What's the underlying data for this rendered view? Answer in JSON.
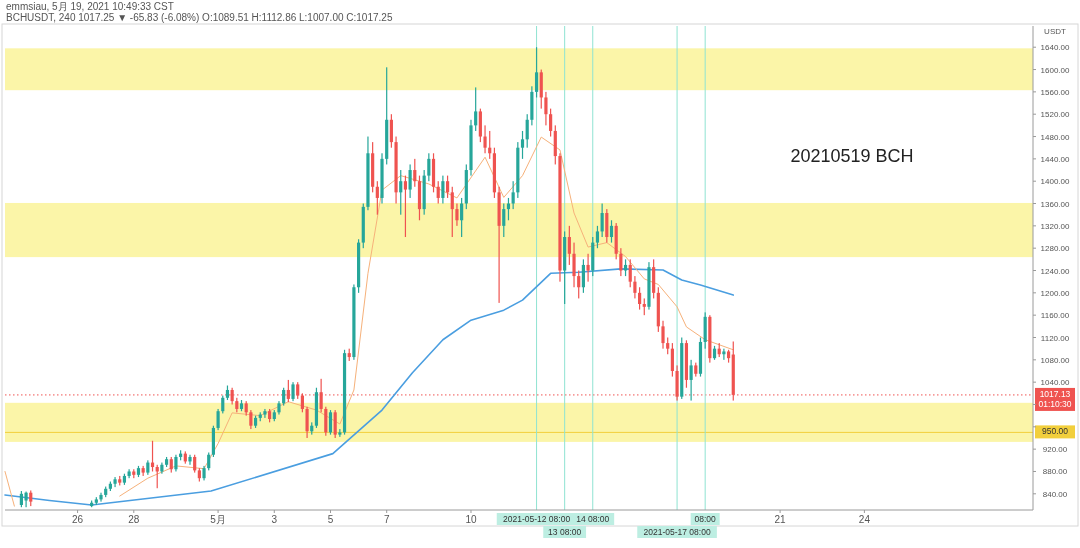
{
  "chart_data": {
    "type": "candlestick",
    "title": "20210519 BCH",
    "ylabel": "USDT",
    "annotations": [
      "emmsiau, 5月 19, 2021 10:49:33 CST",
      "BCHUSDT, 240 1017.25 ▼ -65.83 (-6.08%) O:1089.51 H:1112.86 L:1007.00 C:1017.25"
    ],
    "xlim": [
      "2021-04-23T10:00",
      "2021-05-30T00:00"
    ],
    "ylim": [
      811,
      1678
    ],
    "xticks": [
      {
        "value": "2021-04-26",
        "label": "26"
      },
      {
        "value": "2021-04-28",
        "label": "28"
      },
      {
        "value": "2021-05-01",
        "label": "5月"
      },
      {
        "value": "2021-05-03",
        "label": "3"
      },
      {
        "value": "2021-05-05",
        "label": "5"
      },
      {
        "value": "2021-05-07",
        "label": "7"
      },
      {
        "value": "2021-05-10",
        "label": "10"
      },
      {
        "value": "2021-05-21",
        "label": "21"
      },
      {
        "value": "2021-05-24",
        "label": "24"
      }
    ],
    "yticks": [
      {
        "value": 840,
        "label": "840.00"
      },
      {
        "value": 880,
        "label": "880.00"
      },
      {
        "value": 920,
        "label": "920.00"
      },
      {
        "value": 960,
        "label": null
      },
      {
        "value": 1000,
        "label": null
      },
      {
        "value": 1040,
        "label": "1040.00"
      },
      {
        "value": 1080,
        "label": "1080.00"
      },
      {
        "value": 1120,
        "label": "1120.00"
      },
      {
        "value": 1160,
        "label": "1160.00"
      },
      {
        "value": 1200,
        "label": "1200.00"
      },
      {
        "value": 1240,
        "label": "1240.00"
      },
      {
        "value": 1280,
        "label": "1280.00"
      },
      {
        "value": 1320,
        "label": "1320.00"
      },
      {
        "value": 1360,
        "label": "1360.00"
      },
      {
        "value": 1400,
        "label": "1400.00"
      },
      {
        "value": 1440,
        "label": "1440.00"
      },
      {
        "value": 1480,
        "label": "1480.00"
      },
      {
        "value": 1520,
        "label": "1520.00"
      },
      {
        "value": 1560,
        "label": "1560.00"
      },
      {
        "value": 1600,
        "label": "1600.00"
      },
      {
        "value": 1640,
        "label": "1640.00"
      }
    ],
    "bands": [
      {
        "axis": "y",
        "from": 1563,
        "to": 1638,
        "color": "#fbf5a8"
      },
      {
        "axis": "y",
        "from": 1264,
        "to": 1361,
        "color": "#fbf5a8"
      },
      {
        "axis": "y",
        "from": 933,
        "to": 1003,
        "color": "#fbf5a8"
      }
    ],
    "ref_lines": [
      {
        "axis": "y",
        "value": 950,
        "label": "950.00",
        "color": "#f2cf3c",
        "line_style": "solid"
      },
      {
        "axis": "y",
        "value": 1017.13,
        "label": "1017.13 01:10:30",
        "color": "#ef5350",
        "line_style": "dotted"
      },
      {
        "axis": "x",
        "value": "2021-05-12T08:00",
        "label": "2021-05-12 08:00",
        "color": "#8fe3d2"
      },
      {
        "axis": "x",
        "value": "2021-05-13T08:00",
        "label": "13 08:00",
        "color": "#8fe3d2"
      },
      {
        "axis": "x",
        "value": "2021-05-14T08:00",
        "label": "14 08:00",
        "color": "#8fe3d2"
      },
      {
        "axis": "x",
        "value": "2021-05-17T08:00",
        "label": "2021-05-17 08:00",
        "color": "#8fe3d2"
      },
      {
        "axis": "x",
        "value": "2021-05-18T08:00",
        "label": "08:00",
        "color": "#8fe3d2"
      }
    ],
    "x": [
      "2021-04-24T00:00",
      "2021-04-24T04:00",
      "2021-04-24T08:00",
      "2021-04-26T12:00",
      "2021-04-26T16:00",
      "2021-04-26T20:00",
      "2021-04-27T00:00",
      "2021-04-27T04:00",
      "2021-04-27T08:00",
      "2021-04-27T12:00",
      "2021-04-27T16:00",
      "2021-04-27T20:00",
      "2021-04-28T00:00",
      "2021-04-28T04:00",
      "2021-04-28T08:00",
      "2021-04-28T12:00",
      "2021-04-28T16:00",
      "2021-04-28T20:00",
      "2021-04-29T00:00",
      "2021-04-29T04:00",
      "2021-04-29T08:00",
      "2021-04-29T12:00",
      "2021-04-29T16:00",
      "2021-04-29T20:00",
      "2021-04-30T00:00",
      "2021-04-30T04:00",
      "2021-04-30T08:00",
      "2021-04-30T12:00",
      "2021-04-30T16:00",
      "2021-04-30T20:00",
      "2021-05-01T00:00",
      "2021-05-01T04:00",
      "2021-05-01T08:00",
      "2021-05-01T12:00",
      "2021-05-01T16:00",
      "2021-05-01T20:00",
      "2021-05-02T00:00",
      "2021-05-02T04:00",
      "2021-05-02T08:00",
      "2021-05-02T12:00",
      "2021-05-02T16:00",
      "2021-05-02T20:00",
      "2021-05-03T00:00",
      "2021-05-03T04:00",
      "2021-05-03T08:00",
      "2021-05-03T12:00",
      "2021-05-03T16:00",
      "2021-05-03T20:00",
      "2021-05-04T00:00",
      "2021-05-04T04:00",
      "2021-05-04T08:00",
      "2021-05-04T12:00",
      "2021-05-04T16:00",
      "2021-05-04T20:00",
      "2021-05-05T00:00",
      "2021-05-05T04:00",
      "2021-05-05T08:00",
      "2021-05-05T12:00",
      "2021-05-05T16:00",
      "2021-05-05T20:00",
      "2021-05-06T00:00",
      "2021-05-06T04:00",
      "2021-05-06T08:00",
      "2021-05-06T12:00",
      "2021-05-06T16:00",
      "2021-05-06T20:00",
      "2021-05-07T00:00",
      "2021-05-07T04:00",
      "2021-05-07T08:00",
      "2021-05-07T12:00",
      "2021-05-07T16:00",
      "2021-05-07T20:00",
      "2021-05-08T00:00",
      "2021-05-08T04:00",
      "2021-05-08T08:00",
      "2021-05-08T12:00",
      "2021-05-08T16:00",
      "2021-05-08T20:00",
      "2021-05-09T00:00",
      "2021-05-09T04:00",
      "2021-05-09T08:00",
      "2021-05-09T12:00",
      "2021-05-09T16:00",
      "2021-05-09T20:00",
      "2021-05-10T00:00",
      "2021-05-10T04:00",
      "2021-05-10T08:00",
      "2021-05-10T12:00",
      "2021-05-10T16:00",
      "2021-05-10T20:00",
      "2021-05-11T00:00",
      "2021-05-11T04:00",
      "2021-05-11T08:00",
      "2021-05-11T12:00",
      "2021-05-11T16:00",
      "2021-05-11T20:00",
      "2021-05-12T00:00",
      "2021-05-12T04:00",
      "2021-05-12T08:00",
      "2021-05-12T12:00",
      "2021-05-12T16:00",
      "2021-05-12T20:00",
      "2021-05-13T00:00",
      "2021-05-13T04:00",
      "2021-05-13T08:00",
      "2021-05-13T12:00",
      "2021-05-13T16:00",
      "2021-05-13T20:00",
      "2021-05-14T00:00",
      "2021-05-14T04:00",
      "2021-05-14T08:00",
      "2021-05-14T12:00",
      "2021-05-14T16:00",
      "2021-05-14T20:00",
      "2021-05-15T00:00",
      "2021-05-15T04:00",
      "2021-05-15T08:00",
      "2021-05-15T12:00",
      "2021-05-15T16:00",
      "2021-05-15T20:00",
      "2021-05-16T00:00",
      "2021-05-16T04:00",
      "2021-05-16T08:00",
      "2021-05-16T12:00",
      "2021-05-16T16:00",
      "2021-05-16T20:00",
      "2021-05-17T00:00",
      "2021-05-17T04:00",
      "2021-05-17T08:00",
      "2021-05-17T12:00",
      "2021-05-17T16:00",
      "2021-05-17T20:00",
      "2021-05-18T00:00",
      "2021-05-18T04:00",
      "2021-05-18T08:00",
      "2021-05-18T12:00",
      "2021-05-18T16:00",
      "2021-05-18T20:00",
      "2021-05-19T00:00",
      "2021-05-19T04:00",
      "2021-05-19T08:00"
    ],
    "ohlc": [
      [
        820,
        845,
        816,
        840
      ],
      [
        828,
        844,
        816,
        842
      ],
      [
        842,
        846,
        818,
        826
      ],
      [
        818,
        828,
        816,
        824
      ],
      [
        824,
        834,
        820,
        830
      ],
      [
        830,
        842,
        826,
        838
      ],
      [
        838,
        853,
        834,
        849
      ],
      [
        849,
        862,
        845,
        858
      ],
      [
        858,
        870,
        852,
        866
      ],
      [
        866,
        872,
        855,
        860
      ],
      [
        860,
        876,
        856,
        872
      ],
      [
        872,
        884,
        868,
        880
      ],
      [
        880,
        884,
        868,
        874
      ],
      [
        874,
        890,
        870,
        886
      ],
      [
        886,
        890,
        872,
        878
      ],
      [
        878,
        900,
        874,
        896
      ],
      [
        896,
        935,
        880,
        888
      ],
      [
        888,
        892,
        850,
        880
      ],
      [
        880,
        896,
        876,
        892
      ],
      [
        892,
        906,
        888,
        902
      ],
      [
        902,
        906,
        878,
        884
      ],
      [
        884,
        910,
        880,
        906
      ],
      [
        906,
        918,
        900,
        912
      ],
      [
        912,
        916,
        894,
        898
      ],
      [
        898,
        910,
        892,
        906
      ],
      [
        906,
        910,
        878,
        882
      ],
      [
        882,
        886,
        862,
        868
      ],
      [
        868,
        890,
        864,
        886
      ],
      [
        886,
        914,
        882,
        910
      ],
      [
        910,
        962,
        906,
        958
      ],
      [
        958,
        992,
        954,
        988
      ],
      [
        988,
        1016,
        984,
        1012
      ],
      [
        1012,
        1034,
        1008,
        1026
      ],
      [
        1026,
        1030,
        1000,
        1006
      ],
      [
        1006,
        1012,
        986,
        992
      ],
      [
        992,
        1008,
        988,
        1002
      ],
      [
        1002,
        1006,
        980,
        986
      ],
      [
        986,
        990,
        956,
        962
      ],
      [
        962,
        980,
        958,
        976
      ],
      [
        976,
        986,
        970,
        982
      ],
      [
        982,
        992,
        976,
        988
      ],
      [
        988,
        992,
        968,
        974
      ],
      [
        974,
        990,
        970,
        986
      ],
      [
        986,
        1006,
        982,
        1002
      ],
      [
        1002,
        1030,
        998,
        1026
      ],
      [
        1026,
        1044,
        1004,
        1010
      ],
      [
        1010,
        1040,
        1006,
        1036
      ],
      [
        1036,
        1040,
        1010,
        1016
      ],
      [
        1016,
        1020,
        986,
        992
      ],
      [
        992,
        996,
        940,
        952
      ],
      [
        952,
        968,
        946,
        962
      ],
      [
        962,
        1030,
        958,
        1022
      ],
      [
        1022,
        1046,
        986,
        992
      ],
      [
        992,
        996,
        944,
        950
      ],
      [
        950,
        990,
        946,
        986
      ],
      [
        986,
        990,
        940,
        946
      ],
      [
        946,
        956,
        942,
        950
      ],
      [
        950,
        1098,
        946,
        1092
      ],
      [
        1092,
        1100,
        1078,
        1085
      ],
      [
        1085,
        1215,
        1080,
        1210
      ],
      [
        1210,
        1296,
        1200,
        1290
      ],
      [
        1290,
        1360,
        1280,
        1354
      ],
      [
        1354,
        1480,
        1348,
        1450
      ],
      [
        1450,
        1470,
        1380,
        1390
      ],
      [
        1390,
        1400,
        1340,
        1370
      ],
      [
        1370,
        1450,
        1360,
        1440
      ],
      [
        1440,
        1604,
        1430,
        1510
      ],
      [
        1510,
        1520,
        1460,
        1470
      ],
      [
        1470,
        1480,
        1360,
        1380
      ],
      [
        1380,
        1420,
        1340,
        1400
      ],
      [
        1400,
        1410,
        1300,
        1385
      ],
      [
        1385,
        1430,
        1370,
        1420
      ],
      [
        1420,
        1440,
        1390,
        1400
      ],
      [
        1400,
        1410,
        1330,
        1350
      ],
      [
        1350,
        1420,
        1340,
        1410
      ],
      [
        1410,
        1450,
        1400,
        1440
      ],
      [
        1440,
        1450,
        1380,
        1390
      ],
      [
        1390,
        1400,
        1360,
        1370
      ],
      [
        1370,
        1410,
        1360,
        1400
      ],
      [
        1400,
        1410,
        1370,
        1380
      ],
      [
        1380,
        1390,
        1300,
        1350
      ],
      [
        1350,
        1360,
        1320,
        1330
      ],
      [
        1330,
        1370,
        1300,
        1360
      ],
      [
        1360,
        1430,
        1350,
        1420
      ],
      [
        1420,
        1510,
        1410,
        1500
      ],
      [
        1500,
        1568,
        1490,
        1525
      ],
      [
        1525,
        1530,
        1470,
        1480
      ],
      [
        1480,
        1500,
        1450,
        1460
      ],
      [
        1460,
        1490,
        1440,
        1450
      ],
      [
        1450,
        1460,
        1370,
        1380
      ],
      [
        1380,
        1390,
        1182,
        1320
      ],
      [
        1320,
        1360,
        1300,
        1350
      ],
      [
        1350,
        1370,
        1330,
        1360
      ],
      [
        1360,
        1400,
        1350,
        1380
      ],
      [
        1380,
        1470,
        1370,
        1460
      ],
      [
        1460,
        1490,
        1440,
        1475
      ],
      [
        1475,
        1520,
        1460,
        1510
      ],
      [
        1510,
        1570,
        1500,
        1560
      ],
      [
        1560,
        1640,
        1550,
        1595
      ],
      [
        1595,
        1600,
        1530,
        1550
      ],
      [
        1550,
        1560,
        1500,
        1520
      ],
      [
        1520,
        1530,
        1480,
        1490
      ],
      [
        1490,
        1500,
        1430,
        1445
      ],
      [
        1445,
        1450,
        1220,
        1240
      ],
      [
        1240,
        1310,
        1180,
        1300
      ],
      [
        1300,
        1320,
        1250,
        1270
      ],
      [
        1270,
        1290,
        1210,
        1230
      ],
      [
        1230,
        1240,
        1190,
        1210
      ],
      [
        1210,
        1260,
        1200,
        1250
      ],
      [
        1250,
        1270,
        1220,
        1240
      ],
      [
        1240,
        1300,
        1230,
        1290
      ],
      [
        1290,
        1320,
        1280,
        1310
      ],
      [
        1310,
        1360,
        1300,
        1343
      ],
      [
        1343,
        1350,
        1290,
        1300
      ],
      [
        1300,
        1330,
        1290,
        1320
      ],
      [
        1320,
        1325,
        1260,
        1270
      ],
      [
        1270,
        1280,
        1230,
        1240
      ],
      [
        1240,
        1260,
        1230,
        1250
      ],
      [
        1250,
        1260,
        1210,
        1220
      ],
      [
        1220,
        1230,
        1190,
        1200
      ],
      [
        1200,
        1210,
        1170,
        1180
      ],
      [
        1180,
        1190,
        1160,
        1175
      ],
      [
        1175,
        1255,
        1170,
        1246
      ],
      [
        1246,
        1260,
        1190,
        1200
      ],
      [
        1200,
        1210,
        1130,
        1140
      ],
      [
        1140,
        1150,
        1100,
        1110
      ],
      [
        1110,
        1120,
        1090,
        1100
      ],
      [
        1100,
        1110,
        1050,
        1060
      ],
      [
        1060,
        1070,
        1007,
        1014
      ],
      [
        1014,
        1120,
        1010,
        1110
      ],
      [
        1110,
        1115,
        1030,
        1044
      ],
      [
        1044,
        1080,
        1007,
        1070
      ],
      [
        1070,
        1075,
        1050,
        1055
      ],
      [
        1055,
        1120,
        1050,
        1112
      ],
      [
        1112,
        1165,
        1100,
        1157
      ],
      [
        1157,
        1160,
        1075,
        1083
      ],
      [
        1083,
        1105,
        1080,
        1100
      ],
      [
        1100,
        1110,
        1085,
        1090
      ],
      [
        1090,
        1100,
        1080,
        1095
      ],
      [
        1095,
        1098,
        1075,
        1083
      ],
      [
        1089.51,
        1112.86,
        1007,
        1017.25
      ]
    ],
    "series": [
      {
        "type": "line",
        "color": "#4a9ee0",
        "x": [
          "2021-04-23T10:00",
          "2021-04-25T00:00",
          "2021-04-26T12:00",
          "2021-04-30T18:00",
          "2021-05-05T02:00",
          "2021-05-06T20:00",
          "2021-05-07T22:00",
          "2021-05-09T00:00",
          "2021-05-10T00:00",
          "2021-05-11T04:00",
          "2021-05-11T20:00",
          "2021-05-12T20:00",
          "2021-05-13T20:00",
          "2021-05-15T08:00",
          "2021-05-16T20:00",
          "2021-05-17T12:00",
          "2021-05-18T04:00",
          "2021-05-19T08:00"
        ],
        "values": [
          838,
          828,
          820,
          845,
          912,
          990,
          1057,
          1116,
          1151,
          1169,
          1187,
          1235,
          1237,
          1243,
          1241,
          1223,
          1214,
          1196
        ]
      },
      {
        "type": "line",
        "color": "#f6b17a",
        "x": [
          "2021-04-23T10:00",
          "2021-04-23T18:00",
          "2021-04-25T00:00",
          "2021-04-27T12:00",
          "2021-04-28T12:00",
          "2021-04-29T12:00",
          "2021-04-30T12:00",
          "2021-05-01T00:00",
          "2021-05-01T12:00",
          "2021-05-02T12:00",
          "2021-05-03T12:00",
          "2021-05-04T12:00",
          "2021-05-05T08:00",
          "2021-05-05T20:00",
          "2021-05-06T08:00",
          "2021-05-06T20:00",
          "2021-05-07T12:00",
          "2021-05-08T12:00",
          "2021-05-09T12:00",
          "2021-05-10T12:00",
          "2021-05-11T04:00",
          "2021-05-11T20:00",
          "2021-05-12T12:00",
          "2021-05-13T04:00",
          "2021-05-13T16:00",
          "2021-05-14T04:00",
          "2021-05-14T20:00",
          "2021-05-15T12:00",
          "2021-05-16T04:00",
          "2021-05-16T16:00",
          "2021-05-17T08:00",
          "2021-05-17T16:00",
          "2021-05-18T08:00",
          "2021-05-19T08:00"
        ],
        "values": [
          880,
          818,
          null,
          836,
          868,
          890,
          885,
          930,
          985,
          980,
          1005,
          990,
          965,
          1026,
          1235,
          1384,
          1410,
          1395,
          1370,
          1443,
          1371,
          1410,
          1479,
          1456,
          1343,
          1282,
          1290,
          1265,
          1225,
          1215,
          1175,
          1139,
          1116,
          1098
        ]
      }
    ]
  }
}
